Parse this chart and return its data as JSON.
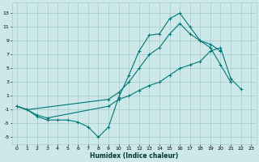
{
  "xlabel": "Humidex (Indice chaleur)",
  "background_color": "#cce8e8",
  "grid_color": "#aacfcf",
  "line_color": "#007777",
  "xlim": [
    -0.5,
    23.5
  ],
  "ylim": [
    -6,
    14.5
  ],
  "yticks": [
    -5,
    -3,
    -1,
    1,
    3,
    5,
    7,
    9,
    11,
    13
  ],
  "xticks": [
    0,
    1,
    2,
    3,
    4,
    5,
    6,
    7,
    8,
    9,
    10,
    11,
    12,
    13,
    14,
    15,
    16,
    17,
    18,
    19,
    20,
    21,
    22,
    23
  ],
  "series": [
    {
      "x": [
        0,
        1,
        2,
        3,
        4,
        5,
        6,
        7,
        8,
        9,
        10,
        11,
        12,
        13,
        14,
        15,
        16,
        17,
        18,
        19,
        20,
        21
      ],
      "y": [
        -0.5,
        -1.0,
        -2.0,
        -2.5,
        -2.5,
        -2.5,
        -2.8,
        -3.5,
        -5.0,
        -3.5,
        0.8,
        4.0,
        7.5,
        9.8,
        10.0,
        12.2,
        13.0,
        11.0,
        9.0,
        8.0,
        5.5,
        3.0
      ]
    },
    {
      "x": [
        0,
        1,
        9,
        10,
        11,
        12,
        13,
        14,
        15,
        16,
        17,
        18,
        19,
        20
      ],
      "y": [
        -0.5,
        -1.0,
        0.5,
        1.5,
        3.0,
        5.0,
        7.0,
        8.0,
        10.0,
        11.5,
        10.0,
        9.0,
        8.5,
        7.5
      ]
    },
    {
      "x": [
        0,
        1,
        2,
        3,
        9,
        10,
        11,
        12,
        13,
        14,
        15,
        16,
        17,
        18,
        19,
        20,
        21,
        22
      ],
      "y": [
        -0.5,
        -1.0,
        -1.8,
        -2.2,
        -0.5,
        0.5,
        1.0,
        1.8,
        2.5,
        3.0,
        4.0,
        5.0,
        5.5,
        6.0,
        7.5,
        8.0,
        3.5,
        2.0
      ]
    }
  ]
}
